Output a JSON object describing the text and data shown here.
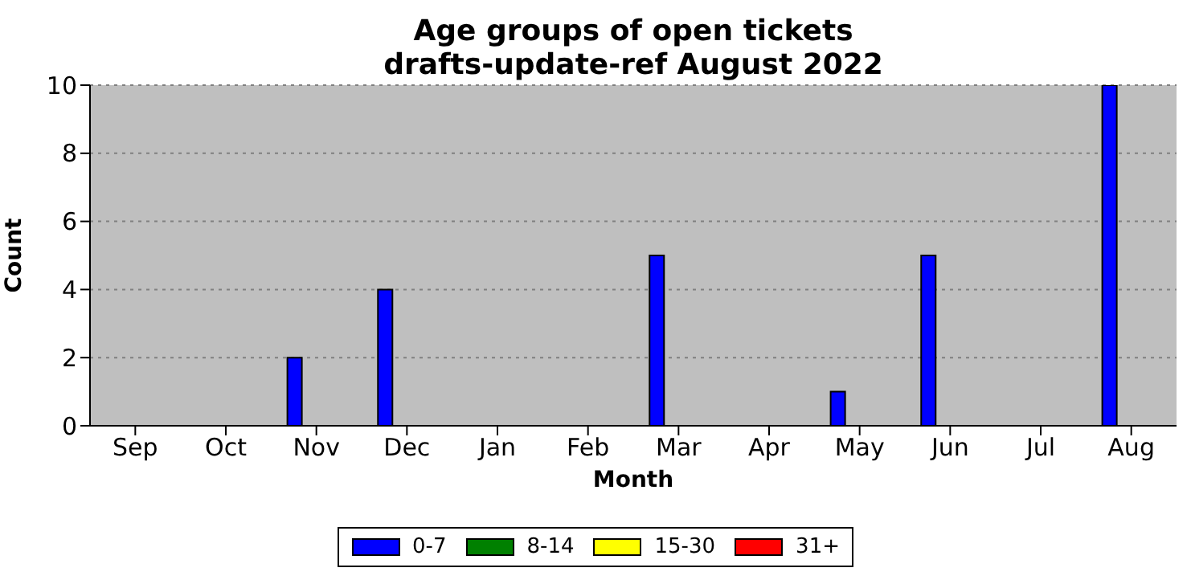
{
  "chart_data": {
    "type": "bar",
    "title": "Age groups of open tickets\ndrafts-update-ref August 2022",
    "xlabel": "Month",
    "ylabel": "Count",
    "categories": [
      "Sep",
      "Oct",
      "Nov",
      "Dec",
      "Jan",
      "Feb",
      "Mar",
      "Apr",
      "May",
      "Jun",
      "Jul",
      "Aug"
    ],
    "series": [
      {
        "name": "0-7",
        "color": "#0000ff",
        "values": [
          0,
          0,
          2,
          4,
          0,
          0,
          5,
          0,
          1,
          5,
          0,
          10
        ]
      },
      {
        "name": "8-14",
        "color": "#008000",
        "values": [
          0,
          0,
          0,
          0,
          0,
          0,
          0,
          0,
          0,
          0,
          0,
          0
        ]
      },
      {
        "name": "15-30",
        "color": "#ffff00",
        "values": [
          0,
          0,
          0,
          0,
          0,
          0,
          0,
          0,
          0,
          0,
          0,
          0
        ]
      },
      {
        "name": "31+",
        "color": "#ff0000",
        "values": [
          0,
          0,
          0,
          0,
          0,
          0,
          0,
          0,
          0,
          0,
          0,
          0
        ]
      }
    ],
    "ylim": [
      0,
      10
    ],
    "yticks": [
      0,
      2,
      4,
      6,
      8,
      10
    ],
    "grid": "y",
    "legend": "bottom"
  }
}
